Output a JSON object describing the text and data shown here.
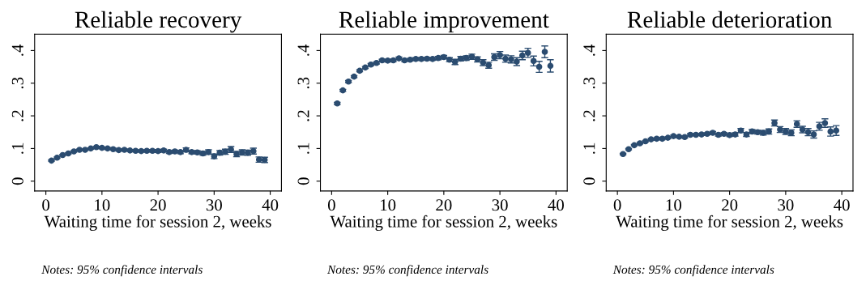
{
  "chart_data": [
    {
      "type": "scatter",
      "title": "Reliable recovery",
      "xlabel": "Waiting time for session 2, weeks",
      "annotations": [
        "Notes: 95% confidence intervals"
      ],
      "xlim": [
        -2,
        42
      ],
      "ylim": [
        -0.03,
        0.45
      ],
      "xticks": [
        0,
        10,
        20,
        30,
        40
      ],
      "yticks": [
        {
          "value": 0,
          "label": "0"
        },
        {
          "value": 0.1,
          "label": ".1"
        },
        {
          "value": 0.2,
          "label": ".2"
        },
        {
          "value": 0.3,
          "label": ".3"
        },
        {
          "value": 0.4,
          "label": ".4"
        }
      ],
      "grid": false,
      "legend": false,
      "marker": "circle",
      "x": [
        1,
        2,
        3,
        4,
        5,
        6,
        7,
        8,
        9,
        10,
        11,
        12,
        13,
        14,
        15,
        16,
        17,
        18,
        19,
        20,
        21,
        22,
        23,
        24,
        25,
        26,
        27,
        28,
        29,
        30,
        31,
        32,
        33,
        34,
        35,
        36,
        37,
        38,
        39
      ],
      "series": [
        {
          "color": "#2b4c70",
          "values": [
            0.063,
            0.072,
            0.08,
            0.085,
            0.091,
            0.096,
            0.096,
            0.1,
            0.104,
            0.102,
            0.1,
            0.098,
            0.095,
            0.096,
            0.094,
            0.093,
            0.092,
            0.093,
            0.093,
            0.092,
            0.094,
            0.089,
            0.091,
            0.089,
            0.096,
            0.089,
            0.088,
            0.085,
            0.089,
            0.076,
            0.087,
            0.09,
            0.097,
            0.083,
            0.088,
            0.087,
            0.092,
            0.066,
            0.065
          ],
          "errors": [
            0.002,
            0.002,
            0.002,
            0.002,
            0.002,
            0.002,
            0.002,
            0.002,
            0.003,
            0.003,
            0.003,
            0.003,
            0.003,
            0.003,
            0.003,
            0.003,
            0.003,
            0.003,
            0.004,
            0.004,
            0.004,
            0.004,
            0.004,
            0.005,
            0.006,
            0.005,
            0.005,
            0.006,
            0.007,
            0.007,
            0.007,
            0.008,
            0.009,
            0.008,
            0.008,
            0.008,
            0.009,
            0.008,
            0.008
          ]
        }
      ]
    },
    {
      "type": "scatter",
      "title": "Reliable improvement",
      "xlabel": "Waiting time for session 2, weeks",
      "annotations": [
        "Notes: 95% confidence intervals"
      ],
      "xlim": [
        -2,
        42
      ],
      "ylim": [
        -0.03,
        0.45
      ],
      "xticks": [
        0,
        10,
        20,
        30,
        40
      ],
      "yticks": [
        {
          "value": 0,
          "label": "0"
        },
        {
          "value": 0.1,
          "label": ".1"
        },
        {
          "value": 0.2,
          "label": ".2"
        },
        {
          "value": 0.3,
          "label": ".3"
        },
        {
          "value": 0.4,
          "label": ".4"
        }
      ],
      "grid": false,
      "legend": false,
      "marker": "circle",
      "x": [
        1,
        2,
        3,
        4,
        5,
        6,
        7,
        8,
        9,
        10,
        11,
        12,
        13,
        14,
        15,
        16,
        17,
        18,
        19,
        20,
        21,
        22,
        23,
        24,
        25,
        26,
        27,
        28,
        29,
        30,
        31,
        32,
        33,
        34,
        35,
        36,
        37,
        38,
        39
      ],
      "series": [
        {
          "color": "#2b4c70",
          "values": [
            0.238,
            0.278,
            0.305,
            0.32,
            0.338,
            0.348,
            0.357,
            0.362,
            0.37,
            0.369,
            0.37,
            0.376,
            0.37,
            0.372,
            0.374,
            0.374,
            0.375,
            0.374,
            0.377,
            0.38,
            0.372,
            0.365,
            0.375,
            0.377,
            0.381,
            0.373,
            0.363,
            0.355,
            0.38,
            0.386,
            0.375,
            0.373,
            0.366,
            0.385,
            0.393,
            0.368,
            0.35,
            0.396,
            0.353
          ],
          "errors": [
            0.003,
            0.003,
            0.003,
            0.003,
            0.003,
            0.003,
            0.003,
            0.003,
            0.003,
            0.004,
            0.004,
            0.004,
            0.004,
            0.004,
            0.004,
            0.004,
            0.004,
            0.004,
            0.005,
            0.005,
            0.006,
            0.008,
            0.007,
            0.007,
            0.008,
            0.008,
            0.009,
            0.009,
            0.01,
            0.011,
            0.011,
            0.011,
            0.012,
            0.013,
            0.014,
            0.015,
            0.017,
            0.018,
            0.019
          ]
        }
      ]
    },
    {
      "type": "scatter",
      "title": "Reliable deterioration",
      "xlabel": "Waiting time for session 2, weeks",
      "annotations": [
        "Notes: 95% confidence intervals"
      ],
      "xlim": [
        -2,
        42
      ],
      "ylim": [
        -0.03,
        0.45
      ],
      "xticks": [
        0,
        10,
        20,
        30,
        40
      ],
      "yticks": [
        {
          "value": 0,
          "label": "0"
        },
        {
          "value": 0.1,
          "label": ".1"
        },
        {
          "value": 0.2,
          "label": ".2"
        },
        {
          "value": 0.3,
          "label": ".3"
        },
        {
          "value": 0.4,
          "label": ".4"
        }
      ],
      "grid": false,
      "legend": false,
      "marker": "circle",
      "x": [
        1,
        2,
        3,
        4,
        5,
        6,
        7,
        8,
        9,
        10,
        11,
        12,
        13,
        14,
        15,
        16,
        17,
        18,
        19,
        20,
        21,
        22,
        23,
        24,
        25,
        26,
        27,
        28,
        29,
        30,
        31,
        32,
        33,
        34,
        35,
        36,
        37,
        38,
        39
      ],
      "series": [
        {
          "color": "#2b4c70",
          "values": [
            0.083,
            0.098,
            0.11,
            0.116,
            0.122,
            0.128,
            0.13,
            0.13,
            0.133,
            0.138,
            0.136,
            0.135,
            0.142,
            0.142,
            0.143,
            0.145,
            0.148,
            0.142,
            0.145,
            0.141,
            0.143,
            0.155,
            0.143,
            0.152,
            0.15,
            0.148,
            0.152,
            0.178,
            0.158,
            0.152,
            0.148,
            0.175,
            0.158,
            0.15,
            0.143,
            0.168,
            0.178,
            0.152,
            0.155
          ],
          "errors": [
            0.002,
            0.002,
            0.002,
            0.002,
            0.002,
            0.003,
            0.003,
            0.003,
            0.003,
            0.003,
            0.003,
            0.003,
            0.003,
            0.003,
            0.003,
            0.003,
            0.004,
            0.004,
            0.004,
            0.004,
            0.005,
            0.006,
            0.006,
            0.006,
            0.006,
            0.007,
            0.008,
            0.009,
            0.009,
            0.009,
            0.009,
            0.01,
            0.01,
            0.011,
            0.011,
            0.012,
            0.013,
            0.014,
            0.015
          ]
        }
      ]
    }
  ]
}
